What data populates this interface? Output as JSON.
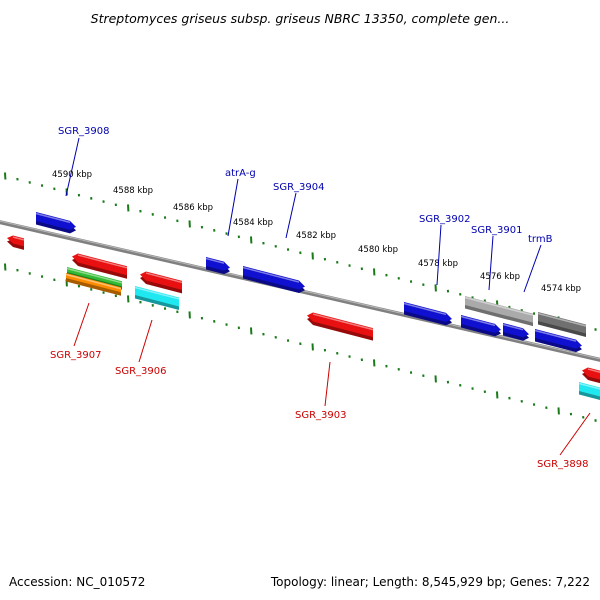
{
  "title": "Streptomyces griseus subsp. griseus NBRC 13350, complete gen...",
  "footer": {
    "accession": "Accession: NC_010572",
    "summary": "Topology: linear; Length: 8,545,929 bp; Genes: 7,222"
  },
  "colors": {
    "backbone": "#808080",
    "tick": "#1a7a1a",
    "blue": "#1010d0",
    "red": "#e81010",
    "green": "#33bb33",
    "orange": "#ff8c00",
    "cyan": "#20e8f0",
    "gray": "#aaaaaa",
    "darkgray": "#707070",
    "label_forward": "#0000b0",
    "label_reverse": "#cc0000"
  },
  "scale_labels": [
    "4590 kbp",
    "4588 kbp",
    "4586 kbp",
    "4584 kbp",
    "4582 kbp",
    "4580 kbp",
    "4578 kbp",
    "4576 kbp",
    "4574 kbp"
  ],
  "genes": [
    {
      "id": "g1",
      "label": "SGR_3908",
      "strand": "forward",
      "color": "blue"
    },
    {
      "id": "g2",
      "label": "atrA-g",
      "strand": "forward",
      "color": "blue"
    },
    {
      "id": "g3",
      "label": "SGR_3904",
      "strand": "forward",
      "color": "blue"
    },
    {
      "id": "g4",
      "label": "SGR_3902",
      "strand": "forward",
      "color": "blue"
    },
    {
      "id": "g5",
      "label": "SGR_3901",
      "strand": "forward",
      "color": "blue"
    },
    {
      "id": "g6",
      "label": "trmB",
      "strand": "forward",
      "color": "blue"
    },
    {
      "id": "g7",
      "label": "SGR_3907",
      "strand": "reverse",
      "color": "red"
    },
    {
      "id": "g8",
      "label": "SGR_3906",
      "strand": "reverse",
      "color": "red"
    },
    {
      "id": "g9",
      "label": "SGR_3903",
      "strand": "reverse",
      "color": "red"
    },
    {
      "id": "g10",
      "label": "SGR_3898",
      "strand": "reverse",
      "color": "red"
    }
  ]
}
